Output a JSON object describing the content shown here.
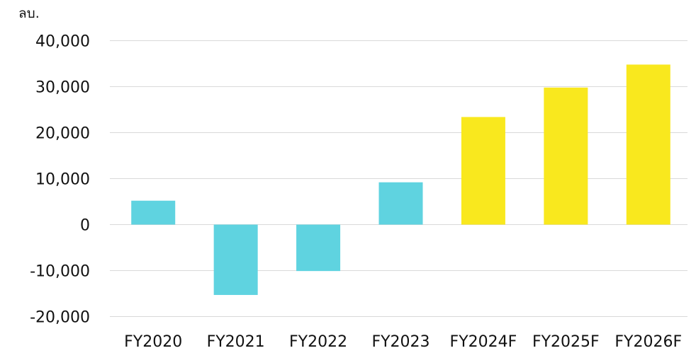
{
  "chart_data": {
    "type": "bar",
    "unit_label": "ลบ.",
    "categories": [
      "FY2020",
      "FY2021",
      "FY2022",
      "FY2023",
      "FY2024F",
      "FY2025F",
      "FY2026F"
    ],
    "values": [
      5200,
      -15300,
      -10100,
      9200,
      23400,
      29800,
      34800
    ],
    "bar_colors": [
      "#5fd3e0",
      "#5fd3e0",
      "#5fd3e0",
      "#5fd3e0",
      "#f9e81e",
      "#f9e81e",
      "#f9e81e"
    ],
    "ylim": [
      -20000,
      40000
    ],
    "y_ticks": [
      40000,
      30000,
      20000,
      10000,
      0,
      -10000,
      -20000
    ],
    "y_tick_labels": [
      "40,000",
      "30,000",
      "20,000",
      "10,000",
      "0",
      "-10,000",
      "-20,000"
    ],
    "grid": true,
    "grid_color": "#d9d9d9",
    "legend": "none"
  }
}
